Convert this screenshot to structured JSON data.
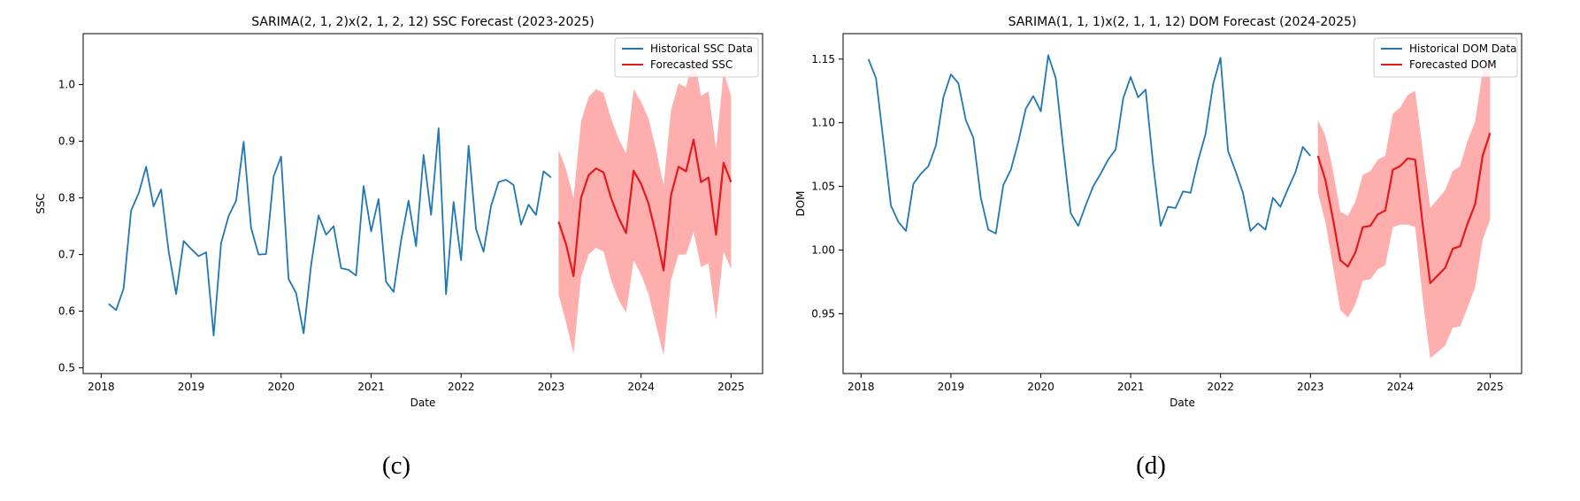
{
  "colors": {
    "historical": "#1f77b4",
    "forecast": "#e41a1c",
    "ci_fill": "#ff9a9a"
  },
  "panels": [
    {
      "caption": "(c)",
      "chart_data": {
        "type": "line",
        "title": "SARIMA(2, 1, 2)x(2, 1, 2, 12) SSC Forecast (2023-2025)",
        "xlabel": "Date",
        "ylabel": "SSC",
        "xlim": [
          2017.8,
          2025.35
        ],
        "ylim": [
          0.49,
          1.09
        ],
        "xticks": [
          2018,
          2019,
          2020,
          2021,
          2022,
          2023,
          2024,
          2025
        ],
        "xtick_labels": [
          "2018",
          "2019",
          "2020",
          "2021",
          "2022",
          "2023",
          "2024",
          "2025"
        ],
        "yticks": [
          0.5,
          0.6,
          0.7,
          0.8,
          0.9,
          1.0
        ],
        "ytick_labels": [
          "0.5",
          "0.6",
          "0.7",
          "0.8",
          "0.9",
          "1.0"
        ],
        "grid": false,
        "legend_position": "top-right",
        "series": [
          {
            "name": "Historical SSC Data",
            "kind": "historical",
            "x_start": 2018.083,
            "x_step": 0.08333,
            "values": [
              0.613,
              0.602,
              0.64,
              0.778,
              0.808,
              0.855,
              0.785,
              0.815,
              0.706,
              0.63,
              0.724,
              0.71,
              0.697,
              0.704,
              0.557,
              0.72,
              0.768,
              0.795,
              0.899,
              0.747,
              0.7,
              0.701,
              0.838,
              0.873,
              0.657,
              0.632,
              0.561,
              0.682,
              0.769,
              0.735,
              0.75,
              0.676,
              0.673,
              0.663,
              0.821,
              0.741,
              0.798,
              0.652,
              0.634,
              0.725,
              0.795,
              0.715,
              0.876,
              0.77,
              0.923,
              0.63,
              0.793,
              0.69,
              0.892,
              0.745,
              0.705,
              0.786,
              0.828,
              0.832,
              0.823,
              0.753,
              0.788,
              0.77,
              0.847,
              0.836
            ]
          },
          {
            "name": "Forecasted SSC",
            "kind": "forecast",
            "x_start": 2023.083,
            "x_step": 0.08333,
            "values": [
              0.758,
              0.718,
              0.662,
              0.8,
              0.84,
              0.852,
              0.845,
              0.8,
              0.765,
              0.738,
              0.848,
              0.825,
              0.79,
              0.735,
              0.672,
              0.805,
              0.855,
              0.847,
              0.903,
              0.828,
              0.836,
              0.735,
              0.862,
              0.828
            ],
            "lower": [
              0.63,
              0.58,
              0.525,
              0.66,
              0.7,
              0.712,
              0.705,
              0.655,
              0.62,
              0.597,
              0.69,
              0.665,
              0.63,
              0.575,
              0.522,
              0.655,
              0.7,
              0.7,
              0.74,
              0.678,
              0.685,
              0.585,
              0.705,
              0.675
            ],
            "upper": [
              0.885,
              0.85,
              0.8,
              0.935,
              0.978,
              0.992,
              0.985,
              0.94,
              0.905,
              0.878,
              0.992,
              0.97,
              0.94,
              0.885,
              0.822,
              0.955,
              1.002,
              0.995,
              1.052,
              0.98,
              0.988,
              0.885,
              1.022,
              0.98
            ]
          }
        ]
      }
    },
    {
      "caption": "(d)",
      "chart_data": {
        "type": "line",
        "title": "SARIMA(1, 1, 1)x(2, 1, 1, 12) DOM Forecast (2024-2025)",
        "xlabel": "Date",
        "ylabel": "DOM",
        "xlim": [
          2017.8,
          2025.35
        ],
        "ylim": [
          0.903,
          1.17
        ],
        "xticks": [
          2018,
          2019,
          2020,
          2021,
          2022,
          2023,
          2024,
          2025
        ],
        "xtick_labels": [
          "2018",
          "2019",
          "2020",
          "2021",
          "2022",
          "2023",
          "2024",
          "2025"
        ],
        "yticks": [
          0.95,
          1.0,
          1.05,
          1.1,
          1.15
        ],
        "ytick_labels": [
          "0.95",
          "1.00",
          "1.05",
          "1.10",
          "1.15"
        ],
        "grid": false,
        "legend_position": "top-right",
        "series": [
          {
            "name": "Historical DOM Data",
            "kind": "historical",
            "x_start": 2018.083,
            "x_step": 0.08333,
            "values": [
              1.15,
              1.135,
              1.085,
              1.035,
              1.022,
              1.015,
              1.052,
              1.06,
              1.066,
              1.082,
              1.12,
              1.138,
              1.131,
              1.102,
              1.088,
              1.041,
              1.016,
              1.013,
              1.051,
              1.063,
              1.085,
              1.111,
              1.121,
              1.109,
              1.153,
              1.135,
              1.08,
              1.029,
              1.019,
              1.035,
              1.05,
              1.06,
              1.071,
              1.079,
              1.119,
              1.136,
              1.12,
              1.126,
              1.068,
              1.019,
              1.034,
              1.033,
              1.046,
              1.045,
              1.07,
              1.091,
              1.13,
              1.151,
              1.078,
              1.062,
              1.045,
              1.015,
              1.021,
              1.016,
              1.041,
              1.034,
              1.048,
              1.061,
              1.081,
              1.074
            ]
          },
          {
            "name": "Forecasted DOM",
            "kind": "forecast",
            "x_start": 2023.083,
            "x_step": 0.08333,
            "values": [
              1.074,
              1.055,
              1.025,
              0.992,
              0.987,
              0.998,
              1.018,
              1.019,
              1.028,
              1.031,
              1.063,
              1.066,
              1.072,
              1.071,
              1.02,
              0.974,
              0.98,
              0.986,
              1.001,
              1.003,
              1.021,
              1.036,
              1.074,
              1.092
            ],
            "lower": [
              1.045,
              1.022,
              0.988,
              0.953,
              0.947,
              0.957,
              0.976,
              0.977,
              0.985,
              0.988,
              1.018,
              1.02,
              1.02,
              1.018,
              0.962,
              0.915,
              0.92,
              0.925,
              0.939,
              0.94,
              0.955,
              0.971,
              1.008,
              1.024
            ],
            "upper": [
              1.102,
              1.09,
              1.063,
              1.03,
              1.027,
              1.038,
              1.059,
              1.062,
              1.071,
              1.074,
              1.107,
              1.112,
              1.122,
              1.125,
              1.078,
              1.033,
              1.04,
              1.047,
              1.062,
              1.066,
              1.086,
              1.101,
              1.14,
              1.159
            ]
          }
        ]
      }
    }
  ]
}
